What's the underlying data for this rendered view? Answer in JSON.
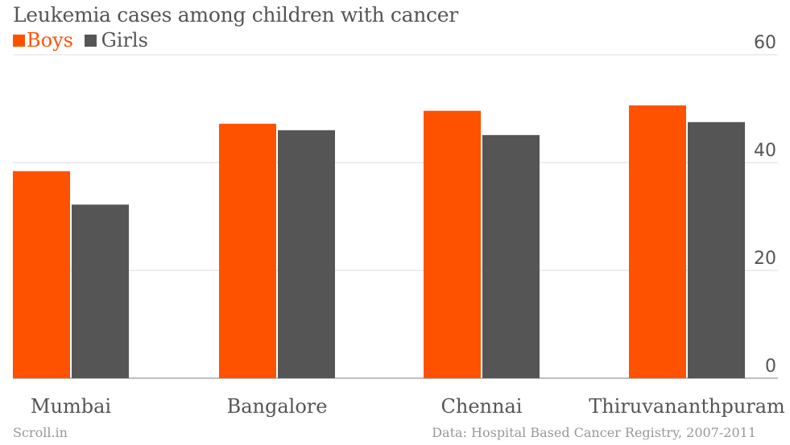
{
  "chart_data": {
    "type": "bar",
    "title": "Leukemia cases among children with cancer",
    "categories": [
      "Mumbai",
      "Bangalore",
      "Chennai",
      "Thiruvananthpuram"
    ],
    "series": [
      {
        "name": "Boys",
        "color": "#ff5200",
        "values": [
          38.4,
          47.2,
          49.6,
          50.6
        ]
      },
      {
        "name": "Girls",
        "color": "#555555",
        "values": [
          32.2,
          46.0,
          45.1,
          47.5
        ]
      }
    ],
    "y_ticks": [
      "0",
      "20",
      "40",
      "60"
    ],
    "ylim": [
      0,
      60
    ],
    "grid": true,
    "legend_position": "top-left"
  },
  "footer": {
    "source_left": "Scroll.in",
    "source_right": "Data: Hospital Based Cancer Registry, 2007-2011"
  }
}
